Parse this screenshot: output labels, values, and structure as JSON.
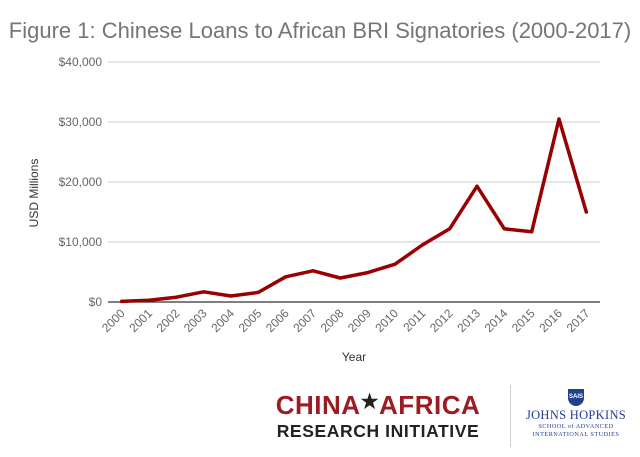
{
  "title": "Figure 1: Chinese Loans to African BRI Signatories (2000-2017)",
  "chart_data": {
    "type": "line",
    "title": "Figure 1: Chinese Loans to African BRI Signatories (2000-2017)",
    "xlabel": "Year",
    "ylabel": "USD Millions",
    "ylim": [
      0,
      40000
    ],
    "yticks": [
      0,
      10000,
      20000,
      30000,
      40000
    ],
    "ytick_labels": [
      "$0",
      "$10,000",
      "$20,000",
      "$30,000",
      "$40,000"
    ],
    "grid": true,
    "categories": [
      "2000",
      "2001",
      "2002",
      "2003",
      "2004",
      "2005",
      "2006",
      "2007",
      "2008",
      "2009",
      "2010",
      "2011",
      "2012",
      "2013",
      "2014",
      "2015",
      "2016",
      "2017"
    ],
    "series": [
      {
        "name": "",
        "color": "#990000",
        "values": [
          100,
          300,
          800,
          1700,
          1000,
          1600,
          4200,
          5200,
          4000,
          4900,
          6300,
          9500,
          12200,
          19300,
          12200,
          11700,
          30500,
          15000
        ]
      }
    ]
  },
  "logos": {
    "cari_line1_left": "CHINA",
    "cari_star": "★",
    "cari_line1_right": "AFRICA",
    "cari_line2": "RESEARCH INITIATIVE",
    "jh_seal": "SAIS",
    "jh_line1": "JOHNS HOPKINS",
    "jh_line2": "SCHOOL of ADVANCED",
    "jh_line3": "INTERNATIONAL STUDIES"
  }
}
